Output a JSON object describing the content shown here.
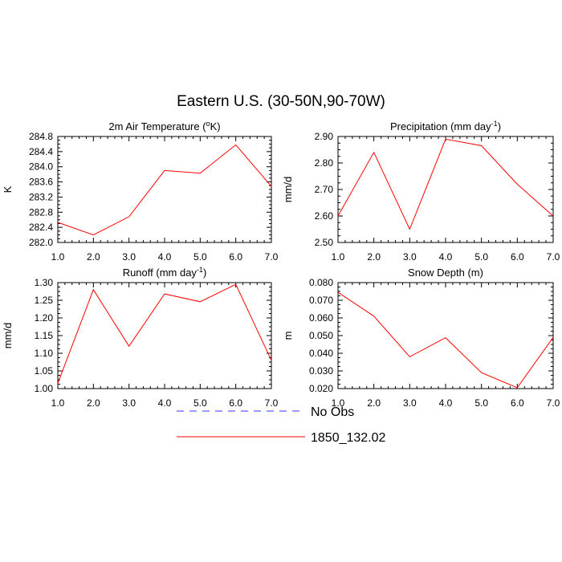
{
  "figure": {
    "title": "Eastern U.S. (30-50N,90-70W)"
  },
  "legend": {
    "placement": "bottom-center",
    "entries": [
      {
        "label": "No Obs",
        "color": "#3333ff",
        "style": "dashed"
      },
      {
        "label": "1850_132.02",
        "color": "#ff0000",
        "style": "solid"
      }
    ]
  },
  "chart_data": [
    {
      "type": "line",
      "title": "2m Air Temperature (°K)",
      "title_parts": {
        "pre": "2m Air Temperature (",
        "sup": "o",
        "post": "K)"
      },
      "xlabel": "",
      "ylabel": "K",
      "x": [
        1.0,
        2.0,
        3.0,
        4.0,
        5.0,
        6.0,
        7.0
      ],
      "xlim": [
        1.0,
        7.0
      ],
      "xticks": [
        "1.0",
        "2.0",
        "3.0",
        "4.0",
        "5.0",
        "6.0",
        "7.0"
      ],
      "ylim": [
        282.0,
        284.8
      ],
      "yticks": [
        "282.0",
        "282.4",
        "282.8",
        "283.2",
        "283.6",
        "284.0",
        "284.4",
        "284.8"
      ],
      "grid": false,
      "series": [
        {
          "name": "1850_132.02",
          "color": "#ff0000",
          "values": [
            282.53,
            282.2,
            282.68,
            283.9,
            283.83,
            284.58,
            283.48
          ]
        }
      ]
    },
    {
      "type": "line",
      "title": "Precipitation (mm day-1)",
      "title_parts": {
        "pre": "Precipitation (mm day",
        "sup": "-1",
        "post": ")"
      },
      "xlabel": "",
      "ylabel": "mm/d",
      "x": [
        1.0,
        2.0,
        3.0,
        4.0,
        5.0,
        6.0,
        7.0
      ],
      "xlim": [
        1.0,
        7.0
      ],
      "xticks": [
        "1.0",
        "2.0",
        "3.0",
        "4.0",
        "5.0",
        "6.0",
        "7.0"
      ],
      "ylim": [
        2.5,
        2.9
      ],
      "yticks": [
        "2.50",
        "2.60",
        "2.70",
        "2.80",
        "2.90"
      ],
      "grid": false,
      "series": [
        {
          "name": "1850_132.02",
          "color": "#ff0000",
          "values": [
            2.6,
            2.84,
            2.55,
            2.89,
            2.865,
            2.72,
            2.6
          ]
        }
      ]
    },
    {
      "type": "line",
      "title": "Runoff (mm day-1)",
      "title_parts": {
        "pre": "Runoff (mm day",
        "sup": "-1",
        "post": ")"
      },
      "xlabel": "",
      "ylabel": "mm/d",
      "x": [
        1.0,
        2.0,
        3.0,
        4.0,
        5.0,
        6.0,
        7.0
      ],
      "xlim": [
        1.0,
        7.0
      ],
      "xticks": [
        "1.0",
        "2.0",
        "3.0",
        "4.0",
        "5.0",
        "6.0",
        "7.0"
      ],
      "ylim": [
        1.0,
        1.3
      ],
      "yticks": [
        "1.00",
        "1.05",
        "1.10",
        "1.15",
        "1.20",
        "1.25",
        "1.30"
      ],
      "grid": false,
      "series": [
        {
          "name": "1850_132.02",
          "color": "#ff0000",
          "values": [
            1.015,
            1.28,
            1.12,
            1.268,
            1.246,
            1.295,
            1.08
          ]
        }
      ]
    },
    {
      "type": "line",
      "title": "Snow Depth (m)",
      "title_parts": {
        "pre": "Snow Depth (m)",
        "sup": "",
        "post": ""
      },
      "xlabel": "",
      "ylabel": "m",
      "x": [
        1.0,
        2.0,
        3.0,
        4.0,
        5.0,
        6.0,
        7.0
      ],
      "xlim": [
        1.0,
        7.0
      ],
      "xticks": [
        "1.0",
        "2.0",
        "3.0",
        "4.0",
        "5.0",
        "6.0",
        "7.0"
      ],
      "ylim": [
        0.02,
        0.08
      ],
      "yticks": [
        "0.020",
        "0.030",
        "0.040",
        "0.050",
        "0.060",
        "0.070",
        "0.080"
      ],
      "grid": false,
      "series": [
        {
          "name": "1850_132.02",
          "color": "#ff0000",
          "values": [
            0.0745,
            0.061,
            0.038,
            0.0488,
            0.029,
            0.0205,
            0.049
          ]
        }
      ]
    }
  ]
}
